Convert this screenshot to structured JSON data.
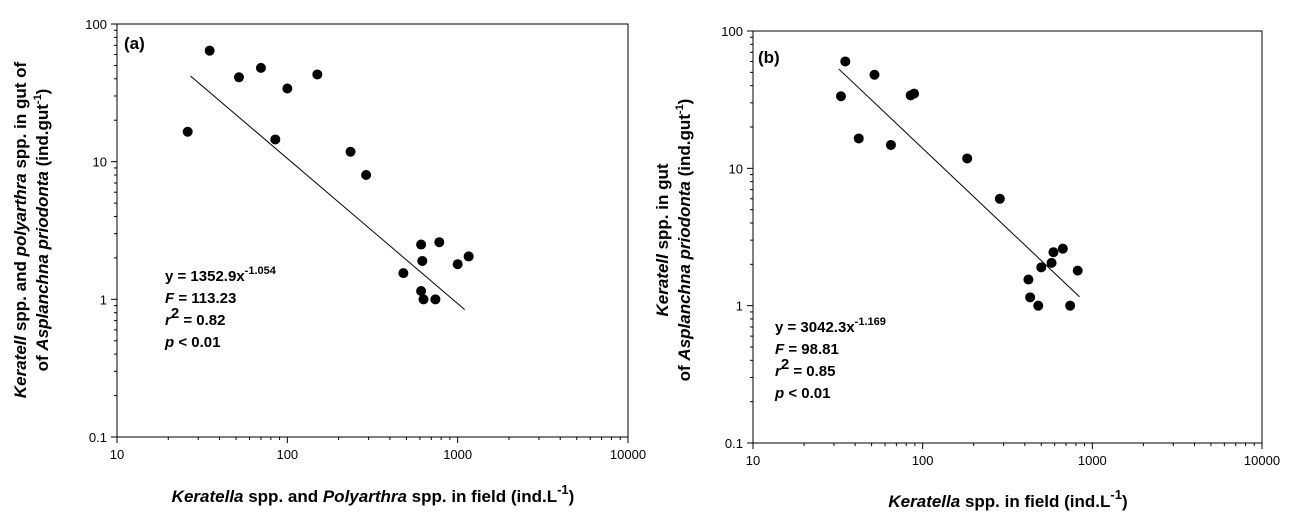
{
  "chart_data": [
    {
      "type": "scatter",
      "panel_label": "(a)",
      "xscale": "log",
      "yscale": "log",
      "xlim": [
        10,
        10000
      ],
      "ylim": [
        0.1,
        100
      ],
      "x_ticks": [
        "10",
        "100",
        "1000",
        "10000"
      ],
      "y_ticks": [
        "0.1",
        "1",
        "10",
        "100"
      ],
      "xlabel": {
        "italic1": "Keratella",
        "mid": " spp. and ",
        "italic2": "Polyarthra",
        "end": " spp. in field (ind.L",
        "sup": "-1",
        "close": ")"
      },
      "ylabel": {
        "line1": {
          "italic1": "Keratell",
          "mid": " spp. and ",
          "italic2": "polyarthra",
          "end": " spp. in gut of"
        },
        "line2": {
          "pre": "of ",
          "italic": "Asplanchna priodonta",
          "end": " (ind.gut",
          "sup": "-1",
          "close": ")"
        }
      },
      "stats": {
        "equation": "y = 1352.9x",
        "equation_exp": "-1.054",
        "f_label": "F",
        "f_value": " = 113.23",
        "r_label": "r",
        "r_exp": "2",
        "r_value": " = 0.82",
        "p_label": "p",
        "p_value": " < 0.01"
      },
      "fit": {
        "a": 1352.9,
        "b": -1.054,
        "x_range": [
          27,
          1100
        ]
      },
      "points": [
        {
          "x": 26,
          "y": 16.5
        },
        {
          "x": 35,
          "y": 64
        },
        {
          "x": 52,
          "y": 41
        },
        {
          "x": 70,
          "y": 48
        },
        {
          "x": 85,
          "y": 14.5
        },
        {
          "x": 100,
          "y": 34
        },
        {
          "x": 150,
          "y": 43
        },
        {
          "x": 235,
          "y": 11.8
        },
        {
          "x": 290,
          "y": 8
        },
        {
          "x": 480,
          "y": 1.55
        },
        {
          "x": 610,
          "y": 2.5
        },
        {
          "x": 610,
          "y": 1.15
        },
        {
          "x": 620,
          "y": 1.9
        },
        {
          "x": 630,
          "y": 1.0
        },
        {
          "x": 740,
          "y": 1.0
        },
        {
          "x": 780,
          "y": 2.6
        },
        {
          "x": 1000,
          "y": 1.8
        },
        {
          "x": 1160,
          "y": 2.05
        }
      ]
    },
    {
      "type": "scatter",
      "panel_label": "(b)",
      "xscale": "log",
      "yscale": "log",
      "xlim": [
        10,
        10000
      ],
      "ylim": [
        0.1,
        100
      ],
      "x_ticks": [
        "10",
        "100",
        "1000",
        "10000"
      ],
      "y_ticks": [
        "0.1",
        "1",
        "10",
        "100"
      ],
      "xlabel": {
        "italic1": "Keratella",
        "end": " spp. in field (ind.L",
        "sup": "-1",
        "close": ")"
      },
      "ylabel": {
        "line1": {
          "italic1": "Keratell",
          "end": " spp. in gut"
        },
        "line2": {
          "pre": "of ",
          "italic": "Asplanchna priodonta",
          "end": " (ind.gut",
          "sup": "-1",
          "close": ")"
        }
      },
      "stats": {
        "equation": "y = 3042.3x",
        "equation_exp": "-1.169",
        "f_label": "F",
        "f_value": " = 98.81",
        "r_label": "r",
        "r_exp": "2",
        "r_value": " = 0.85",
        "p_label": "p",
        "p_value": " < 0.01"
      },
      "fit": {
        "a": 3042.3,
        "b": -1.169,
        "x_range": [
          32,
          840
        ]
      },
      "points": [
        {
          "x": 33,
          "y": 33.5
        },
        {
          "x": 35,
          "y": 60
        },
        {
          "x": 42,
          "y": 16.5
        },
        {
          "x": 52,
          "y": 48
        },
        {
          "x": 65,
          "y": 14.8
        },
        {
          "x": 85,
          "y": 34
        },
        {
          "x": 89,
          "y": 35
        },
        {
          "x": 183,
          "y": 11.8
        },
        {
          "x": 285,
          "y": 6.0
        },
        {
          "x": 420,
          "y": 1.55
        },
        {
          "x": 430,
          "y": 1.15
        },
        {
          "x": 480,
          "y": 1.0
        },
        {
          "x": 500,
          "y": 1.9
        },
        {
          "x": 575,
          "y": 2.05
        },
        {
          "x": 590,
          "y": 2.45
        },
        {
          "x": 670,
          "y": 2.6
        },
        {
          "x": 740,
          "y": 1.0
        },
        {
          "x": 820,
          "y": 1.8
        }
      ]
    }
  ]
}
